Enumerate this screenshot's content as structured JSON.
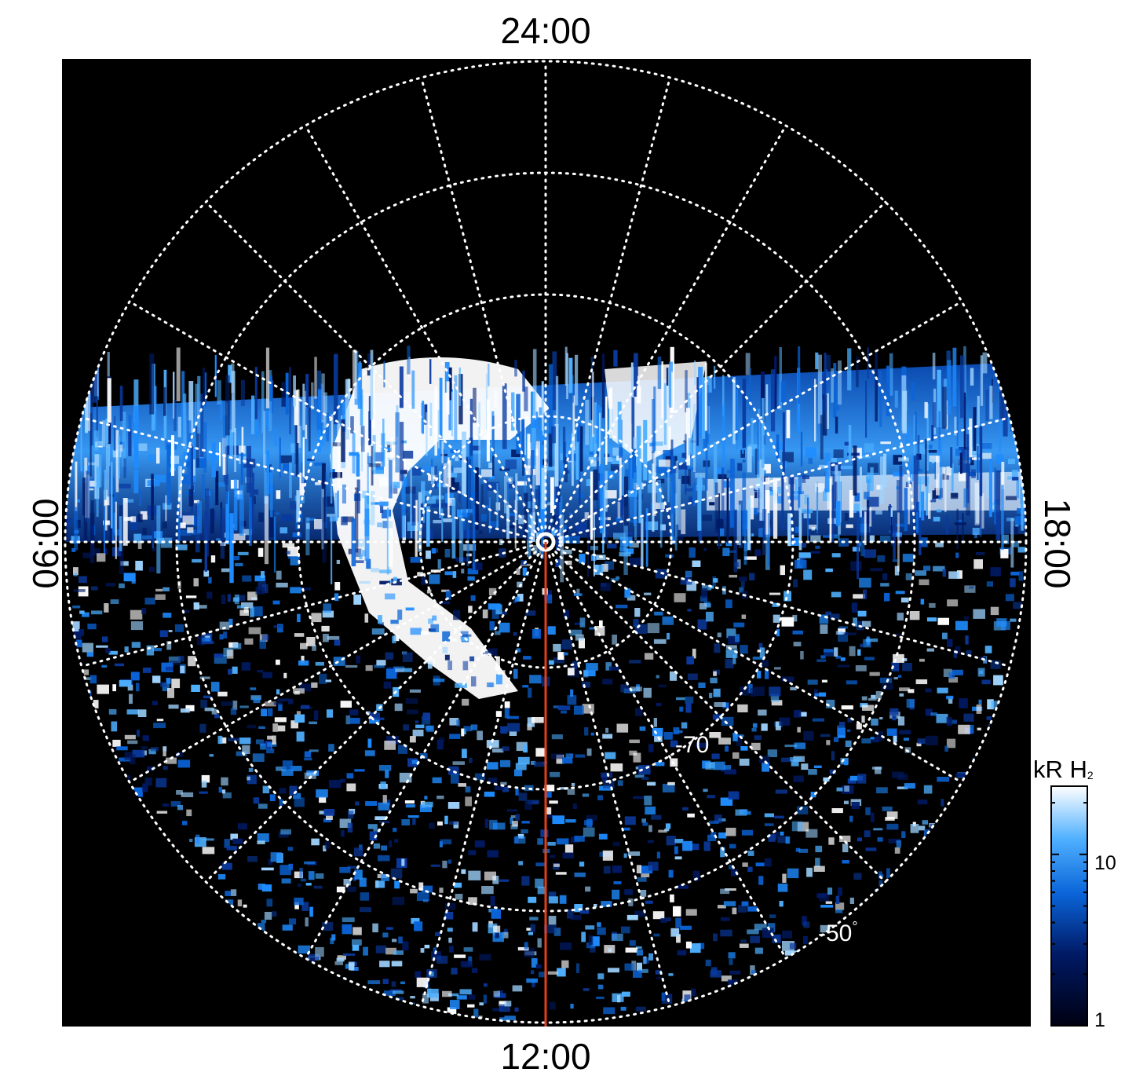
{
  "local_time_labels": {
    "top": "24:00",
    "bottom": "12:00",
    "left": "06:00",
    "right": "18:00"
  },
  "latitude_labels": {
    "inner": "-70",
    "outer": "-50",
    "outer_degree_sign": "°"
  },
  "colorbar": {
    "title_main": "kR H",
    "title_sub": "2",
    "ticks": [
      "10",
      "1"
    ],
    "tick_values": [
      10,
      1
    ],
    "scale": "log",
    "colors": [
      "#000011",
      "#001a66",
      "#0a64d8",
      "#4fb0ff",
      "#ffffff"
    ]
  },
  "colors": {
    "background": "#000000",
    "grid": "#ffffff",
    "meridian_line": "#e0401a",
    "emission_bright": "#ffffff",
    "emission_mid": "#1e8cff"
  },
  "icons": {
    "pole_marker": "circle-pole-icon"
  }
}
